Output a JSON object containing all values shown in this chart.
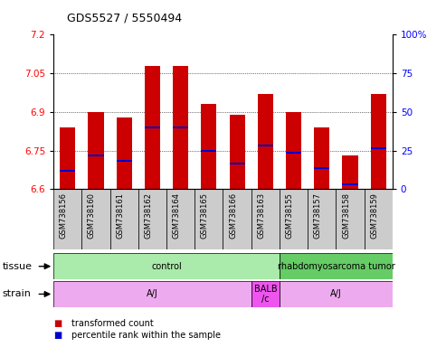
{
  "title": "GDS5527 / 5550494",
  "samples": [
    "GSM738156",
    "GSM738160",
    "GSM738161",
    "GSM738162",
    "GSM738164",
    "GSM738165",
    "GSM738166",
    "GSM738163",
    "GSM738155",
    "GSM738157",
    "GSM738158",
    "GSM738159"
  ],
  "bar_tops": [
    6.84,
    6.9,
    6.88,
    7.08,
    7.08,
    6.93,
    6.89,
    6.97,
    6.9,
    6.84,
    6.73,
    6.97
  ],
  "bar_bottoms": [
    6.6,
    6.6,
    6.6,
    6.6,
    6.6,
    6.6,
    6.6,
    6.6,
    6.6,
    6.6,
    6.6,
    6.6
  ],
  "blue_marks": [
    6.67,
    6.73,
    6.71,
    6.84,
    6.84,
    6.75,
    6.7,
    6.77,
    6.74,
    6.68,
    6.62,
    6.76
  ],
  "ylim": [
    6.6,
    7.2
  ],
  "yticks_left": [
    6.6,
    6.75,
    6.9,
    7.05,
    7.2
  ],
  "yticks_right_vals": [
    0,
    25,
    50,
    75,
    100
  ],
  "bar_color": "#cc0000",
  "blue_color": "#0000cc",
  "tissue_groups": [
    {
      "label": "control",
      "start": 0,
      "end": 8,
      "color": "#aaeaaa"
    },
    {
      "label": "rhabdomyosarcoma tumor",
      "start": 8,
      "end": 12,
      "color": "#66cc66"
    }
  ],
  "strain_groups": [
    {
      "label": "A/J",
      "start": 0,
      "end": 7,
      "color": "#eeaaee"
    },
    {
      "label": "BALB\n/c",
      "start": 7,
      "end": 8,
      "color": "#ee55ee"
    },
    {
      "label": "A/J",
      "start": 8,
      "end": 12,
      "color": "#eeaaee"
    }
  ],
  "legend_items": [
    {
      "color": "#cc0000",
      "label": "transformed count"
    },
    {
      "color": "#0000cc",
      "label": "percentile rank within the sample"
    }
  ],
  "xlabel_bg": "#cccccc"
}
